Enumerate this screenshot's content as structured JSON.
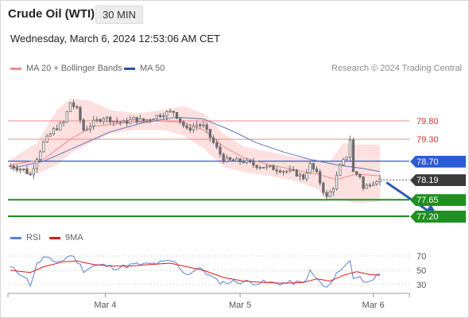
{
  "header": {
    "title": "Crude Oil (WTI)",
    "timeframe": "30 MIN",
    "timestamp": "Wednesday, March 6, 2024 12:53:06 AM CET",
    "credit": "Research © 2024 Trading Central"
  },
  "legend": {
    "ma20": {
      "label": "MA 20 + Bollinger Bands",
      "color": "#f28b8b"
    },
    "ma50": {
      "label": "MA 50",
      "color": "#2a4f9c"
    },
    "rsi": {
      "label": "RSI",
      "color": "#5a7fd9"
    },
    "ma9": {
      "label": "9MA",
      "color": "#e01818"
    }
  },
  "colors": {
    "candle": "#6b6b6b",
    "band": "#fde0e0",
    "resistance": "#f28b8b",
    "pivot": "#2a5cd6",
    "support": "#1f8f1f",
    "last_price": "#3a3a3a",
    "arrow": "#2a5cb0"
  },
  "chart_data": [
    {
      "type": "candlestick",
      "title": "Crude Oil (WTI)",
      "x_ticks": [
        "Mar 4",
        "Mar 5",
        "Mar 6"
      ],
      "ylim": [
        76.9,
        80.5
      ],
      "levels": [
        {
          "value": 79.8,
          "label": "79.80",
          "kind": "resistance"
        },
        {
          "value": 79.3,
          "label": "79.30",
          "kind": "resistance"
        },
        {
          "value": 78.7,
          "label": "78.70",
          "kind": "pivot"
        },
        {
          "value": 78.19,
          "label": "78.19",
          "kind": "last"
        },
        {
          "value": 77.65,
          "label": "77.65",
          "kind": "support"
        },
        {
          "value": 77.2,
          "label": "77.20",
          "kind": "support"
        }
      ],
      "candles": {
        "count": 112,
        "close_path": [
          [
            0,
            78.57
          ],
          [
            4,
            78.47
          ],
          [
            6,
            78.32
          ],
          [
            8,
            78.8
          ],
          [
            10,
            79.2
          ],
          [
            13,
            79.55
          ],
          [
            16,
            79.75
          ],
          [
            18,
            80.3
          ],
          [
            20,
            80.1
          ],
          [
            22,
            79.55
          ],
          [
            25,
            79.75
          ],
          [
            28,
            79.9
          ],
          [
            31,
            79.8
          ],
          [
            34,
            79.75
          ],
          [
            37,
            79.85
          ],
          [
            40,
            79.8
          ],
          [
            43,
            79.9
          ],
          [
            46,
            80.0
          ],
          [
            49,
            80.05
          ],
          [
            51,
            79.8
          ],
          [
            53,
            79.55
          ],
          [
            56,
            79.7
          ],
          [
            58,
            79.65
          ],
          [
            60,
            79.35
          ],
          [
            62,
            79.05
          ],
          [
            64,
            78.75
          ],
          [
            67,
            78.7
          ],
          [
            70,
            78.7
          ],
          [
            73,
            78.6
          ],
          [
            76,
            78.55
          ],
          [
            79,
            78.5
          ],
          [
            82,
            78.45
          ],
          [
            85,
            78.4
          ],
          [
            88,
            78.25
          ],
          [
            90,
            78.6
          ],
          [
            92,
            78.35
          ],
          [
            94,
            77.9
          ],
          [
            95,
            77.7
          ],
          [
            97,
            78.0
          ],
          [
            99,
            78.55
          ],
          [
            101,
            78.85
          ],
          [
            102,
            79.3
          ],
          [
            103,
            78.4
          ],
          [
            105,
            78.3
          ],
          [
            106,
            77.95
          ],
          [
            108,
            78.1
          ],
          [
            110,
            78.2
          ],
          [
            111,
            78.19
          ]
        ]
      },
      "ma20": [
        [
          0,
          78.6
        ],
        [
          10,
          78.75
        ],
        [
          18,
          79.3
        ],
        [
          25,
          79.65
        ],
        [
          35,
          79.75
        ],
        [
          45,
          79.8
        ],
        [
          52,
          79.75
        ],
        [
          58,
          79.55
        ],
        [
          64,
          79.1
        ],
        [
          70,
          78.8
        ],
        [
          78,
          78.6
        ],
        [
          86,
          78.45
        ],
        [
          92,
          78.35
        ],
        [
          98,
          78.2
        ],
        [
          104,
          78.35
        ],
        [
          111,
          78.3
        ]
      ],
      "bollinger_upper": [
        [
          0,
          78.75
        ],
        [
          8,
          79.2
        ],
        [
          14,
          80.1
        ],
        [
          18,
          80.4
        ],
        [
          24,
          80.35
        ],
        [
          30,
          80.1
        ],
        [
          38,
          80.0
        ],
        [
          46,
          80.1
        ],
        [
          52,
          80.2
        ],
        [
          58,
          80.0
        ],
        [
          64,
          79.45
        ],
        [
          70,
          79.1
        ],
        [
          78,
          78.95
        ],
        [
          86,
          78.8
        ],
        [
          92,
          78.75
        ],
        [
          96,
          78.7
        ],
        [
          100,
          79.2
        ],
        [
          104,
          79.15
        ],
        [
          111,
          79.15
        ]
      ],
      "bollinger_lower": [
        [
          0,
          78.45
        ],
        [
          8,
          78.35
        ],
        [
          14,
          78.6
        ],
        [
          18,
          78.9
        ],
        [
          24,
          79.2
        ],
        [
          30,
          79.45
        ],
        [
          38,
          79.55
        ],
        [
          46,
          79.55
        ],
        [
          52,
          79.4
        ],
        [
          58,
          79.05
        ],
        [
          64,
          78.55
        ],
        [
          70,
          78.4
        ],
        [
          78,
          78.3
        ],
        [
          86,
          78.15
        ],
        [
          92,
          77.95
        ],
        [
          96,
          77.65
        ],
        [
          100,
          77.65
        ],
        [
          104,
          77.55
        ],
        [
          111,
          77.6
        ]
      ],
      "ma50": [
        [
          0,
          78.5
        ],
        [
          10,
          78.7
        ],
        [
          20,
          79.1
        ],
        [
          30,
          79.5
        ],
        [
          40,
          79.75
        ],
        [
          50,
          79.9
        ],
        [
          58,
          79.85
        ],
        [
          66,
          79.55
        ],
        [
          74,
          79.2
        ],
        [
          82,
          78.95
        ],
        [
          90,
          78.75
        ],
        [
          98,
          78.6
        ],
        [
          106,
          78.5
        ],
        [
          111,
          78.42
        ]
      ],
      "forecast_arrow": {
        "from": [
          112,
          78.12
        ],
        "to": [
          124,
          77.26
        ]
      }
    },
    {
      "type": "line",
      "title": "RSI",
      "y_ticks": [
        70,
        50,
        30
      ],
      "ylim": [
        20,
        80
      ],
      "series": [
        {
          "name": "RSI",
          "values": [
            [
              0,
              54
            ],
            [
              4,
              43
            ],
            [
              6,
              30
            ],
            [
              8,
              58
            ],
            [
              10,
              68
            ],
            [
              13,
              62
            ],
            [
              16,
              64
            ],
            [
              18,
              72
            ],
            [
              20,
              63
            ],
            [
              22,
              50
            ],
            [
              25,
              56
            ],
            [
              28,
              57
            ],
            [
              31,
              54
            ],
            [
              34,
              55
            ],
            [
              37,
              58
            ],
            [
              40,
              58
            ],
            [
              43,
              59
            ],
            [
              46,
              61
            ],
            [
              49,
              63
            ],
            [
              51,
              53
            ],
            [
              53,
              44
            ],
            [
              56,
              52
            ],
            [
              58,
              50
            ],
            [
              60,
              42
            ],
            [
              62,
              35
            ],
            [
              64,
              33
            ],
            [
              67,
              34
            ],
            [
              70,
              34
            ],
            [
              73,
              33
            ],
            [
              76,
              33
            ],
            [
              79,
              32
            ],
            [
              82,
              32
            ],
            [
              85,
              33
            ],
            [
              88,
              32
            ],
            [
              90,
              48
            ],
            [
              92,
              38
            ],
            [
              94,
              28
            ],
            [
              95,
              25
            ],
            [
              97,
              36
            ],
            [
              99,
              52
            ],
            [
              101,
              58
            ],
            [
              102,
              63
            ],
            [
              103,
              40
            ],
            [
              105,
              42
            ],
            [
              106,
              32
            ],
            [
              108,
              38
            ],
            [
              110,
              41
            ],
            [
              111,
              42
            ]
          ]
        },
        {
          "name": "9MA",
          "values": [
            [
              0,
              50
            ],
            [
              6,
              47
            ],
            [
              10,
              55
            ],
            [
              16,
              62
            ],
            [
              20,
              63
            ],
            [
              25,
              58
            ],
            [
              30,
              56
            ],
            [
              36,
              56
            ],
            [
              42,
              58
            ],
            [
              48,
              60
            ],
            [
              52,
              56
            ],
            [
              58,
              50
            ],
            [
              64,
              40
            ],
            [
              70,
              35
            ],
            [
              76,
              33
            ],
            [
              82,
              32
            ],
            [
              88,
              33
            ],
            [
              92,
              38
            ],
            [
              96,
              35
            ],
            [
              100,
              43
            ],
            [
              104,
              48
            ],
            [
              108,
              44
            ],
            [
              111,
              43
            ]
          ]
        }
      ]
    }
  ]
}
